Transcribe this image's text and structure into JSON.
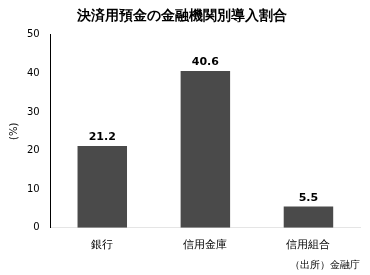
{
  "chart_data": {
    "type": "bar",
    "title": "決済用預金の金融機関別導入割合",
    "categories": [
      "銀行",
      "信用金庫",
      "信用組合"
    ],
    "values": [
      21.2,
      40.6,
      5.5
    ],
    "color": "#4a4a4a",
    "ylabel": "(%)",
    "ylim": [
      0,
      50
    ],
    "yticks": [
      0,
      10,
      20,
      30,
      40,
      50
    ],
    "annotation": "（出所）金融庁",
    "grid": false,
    "data_labels": true
  }
}
